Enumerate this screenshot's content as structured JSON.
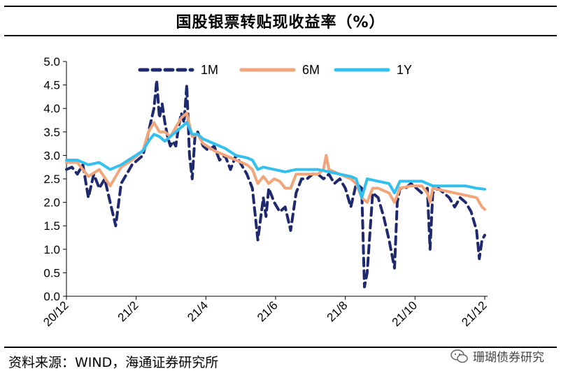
{
  "chart_data": {
    "type": "line",
    "title": "国股银票转贴现收益率（%）",
    "xlabel": "",
    "ylabel": "",
    "ylim": [
      0,
      5
    ],
    "yticks": [
      "0.0",
      "0.5",
      "1.0",
      "1.5",
      "2.0",
      "2.5",
      "3.0",
      "3.5",
      "4.0",
      "4.5",
      "5.0"
    ],
    "xticks": [
      "20/12",
      "21/2",
      "21/4",
      "21/6",
      "21/8",
      "21/10",
      "21/12"
    ],
    "legend_position": "top",
    "series": [
      {
        "name": "1M",
        "color": "#1f2a6e",
        "style": "dashed",
        "points": [
          [
            0,
            2.7
          ],
          [
            2,
            2.75
          ],
          [
            4,
            2.6
          ],
          [
            6,
            2.8
          ],
          [
            8,
            2.1
          ],
          [
            10,
            2.6
          ],
          [
            12,
            2.3
          ],
          [
            14,
            2.5
          ],
          [
            16,
            2.0
          ],
          [
            18,
            1.5
          ],
          [
            20,
            2.4
          ],
          [
            22,
            2.6
          ],
          [
            24,
            2.8
          ],
          [
            26,
            2.9
          ],
          [
            28,
            3.0
          ],
          [
            30,
            3.5
          ],
          [
            32,
            4.0
          ],
          [
            33,
            4.6
          ],
          [
            34,
            3.8
          ],
          [
            35,
            4.1
          ],
          [
            36,
            3.7
          ],
          [
            37,
            3.4
          ],
          [
            38,
            3.2
          ],
          [
            39,
            3.3
          ],
          [
            40,
            3.2
          ],
          [
            41,
            3.6
          ],
          [
            42,
            3.9
          ],
          [
            43,
            3.7
          ],
          [
            44,
            4.5
          ],
          [
            45,
            3.0
          ],
          [
            46,
            2.5
          ],
          [
            47,
            3.4
          ],
          [
            48,
            3.5
          ],
          [
            50,
            3.2
          ],
          [
            52,
            3.1
          ],
          [
            54,
            3.2
          ],
          [
            56,
            2.9
          ],
          [
            58,
            3.0
          ],
          [
            60,
            2.7
          ],
          [
            62,
            3.0
          ],
          [
            64,
            2.8
          ],
          [
            66,
            2.6
          ],
          [
            68,
            2.3
          ],
          [
            70,
            1.2
          ],
          [
            72,
            2.1
          ],
          [
            73,
            1.7
          ],
          [
            74,
            2.3
          ],
          [
            76,
            2.0
          ],
          [
            78,
            1.8
          ],
          [
            80,
            1.9
          ],
          [
            82,
            1.4
          ],
          [
            84,
            2.2
          ],
          [
            86,
            2.5
          ],
          [
            88,
            2.5
          ],
          [
            90,
            2.6
          ],
          [
            92,
            2.6
          ],
          [
            94,
            2.5
          ],
          [
            96,
            2.6
          ],
          [
            98,
            2.4
          ],
          [
            100,
            2.5
          ],
          [
            102,
            2.3
          ],
          [
            104,
            1.9
          ],
          [
            106,
            2.4
          ],
          [
            108,
            2.3
          ],
          [
            109,
            0.2
          ],
          [
            110,
            0.5
          ],
          [
            112,
            2.2
          ],
          [
            114,
            2.1
          ],
          [
            116,
            1.7
          ],
          [
            118,
            1.2
          ],
          [
            120,
            0.6
          ],
          [
            121,
            2.0
          ],
          [
            122,
            2.3
          ],
          [
            124,
            2.3
          ],
          [
            126,
            2.4
          ],
          [
            128,
            2.3
          ],
          [
            130,
            2.2
          ],
          [
            132,
            2.3
          ],
          [
            133,
            1.0
          ],
          [
            134,
            2.2
          ],
          [
            136,
            2.3
          ],
          [
            138,
            2.2
          ],
          [
            140,
            2.1
          ],
          [
            142,
            1.9
          ],
          [
            144,
            2.1
          ],
          [
            146,
            2.0
          ],
          [
            148,
            1.8
          ],
          [
            150,
            1.4
          ],
          [
            151,
            0.8
          ],
          [
            152,
            1.2
          ],
          [
            153,
            1.3
          ]
        ]
      },
      {
        "name": "6M",
        "color": "#f2a57a",
        "style": "solid",
        "points": [
          [
            0,
            2.85
          ],
          [
            4,
            2.85
          ],
          [
            8,
            2.55
          ],
          [
            12,
            2.7
          ],
          [
            16,
            2.35
          ],
          [
            20,
            2.75
          ],
          [
            24,
            2.9
          ],
          [
            28,
            3.1
          ],
          [
            30,
            3.5
          ],
          [
            32,
            3.7
          ],
          [
            34,
            3.5
          ],
          [
            36,
            3.5
          ],
          [
            38,
            3.4
          ],
          [
            40,
            3.6
          ],
          [
            42,
            3.8
          ],
          [
            44,
            3.9
          ],
          [
            46,
            3.4
          ],
          [
            48,
            3.45
          ],
          [
            50,
            3.25
          ],
          [
            54,
            3.1
          ],
          [
            58,
            3.0
          ],
          [
            62,
            2.9
          ],
          [
            66,
            2.8
          ],
          [
            68,
            2.7
          ],
          [
            70,
            2.4
          ],
          [
            72,
            2.55
          ],
          [
            74,
            2.4
          ],
          [
            76,
            2.5
          ],
          [
            78,
            2.45
          ],
          [
            80,
            2.3
          ],
          [
            82,
            2.3
          ],
          [
            84,
            2.6
          ],
          [
            88,
            2.6
          ],
          [
            92,
            2.6
          ],
          [
            94,
            2.7
          ],
          [
            95,
            3.0
          ],
          [
            96,
            2.7
          ],
          [
            100,
            2.6
          ],
          [
            104,
            2.5
          ],
          [
            106,
            2.4
          ],
          [
            108,
            2.1
          ],
          [
            110,
            2.0
          ],
          [
            112,
            2.3
          ],
          [
            114,
            2.3
          ],
          [
            118,
            2.2
          ],
          [
            120,
            2.0
          ],
          [
            122,
            2.3
          ],
          [
            126,
            2.35
          ],
          [
            130,
            2.35
          ],
          [
            132,
            2.2
          ],
          [
            133,
            2.0
          ],
          [
            134,
            2.3
          ],
          [
            138,
            2.25
          ],
          [
            142,
            2.2
          ],
          [
            146,
            2.15
          ],
          [
            150,
            2.1
          ],
          [
            152,
            1.9
          ],
          [
            153,
            1.85
          ]
        ]
      },
      {
        "name": "1Y",
        "color": "#33c0ee",
        "style": "solid",
        "points": [
          [
            0,
            2.9
          ],
          [
            4,
            2.9
          ],
          [
            8,
            2.8
          ],
          [
            12,
            2.85
          ],
          [
            16,
            2.7
          ],
          [
            20,
            2.8
          ],
          [
            24,
            2.95
          ],
          [
            28,
            3.1
          ],
          [
            30,
            3.3
          ],
          [
            32,
            3.45
          ],
          [
            34,
            3.4
          ],
          [
            36,
            3.3
          ],
          [
            38,
            3.4
          ],
          [
            40,
            3.5
          ],
          [
            42,
            3.6
          ],
          [
            44,
            3.7
          ],
          [
            46,
            3.45
          ],
          [
            48,
            3.45
          ],
          [
            50,
            3.35
          ],
          [
            54,
            3.25
          ],
          [
            58,
            3.15
          ],
          [
            62,
            3.0
          ],
          [
            66,
            2.95
          ],
          [
            68,
            2.9
          ],
          [
            70,
            2.7
          ],
          [
            72,
            2.75
          ],
          [
            76,
            2.7
          ],
          [
            80,
            2.65
          ],
          [
            84,
            2.7
          ],
          [
            88,
            2.7
          ],
          [
            92,
            2.7
          ],
          [
            96,
            2.65
          ],
          [
            100,
            2.6
          ],
          [
            104,
            2.55
          ],
          [
            106,
            2.5
          ],
          [
            108,
            2.1
          ],
          [
            110,
            2.5
          ],
          [
            114,
            2.45
          ],
          [
            118,
            2.4
          ],
          [
            120,
            2.2
          ],
          [
            122,
            2.45
          ],
          [
            126,
            2.45
          ],
          [
            130,
            2.45
          ],
          [
            134,
            2.35
          ],
          [
            138,
            2.35
          ],
          [
            142,
            2.35
          ],
          [
            146,
            2.35
          ],
          [
            150,
            2.3
          ],
          [
            153,
            2.28
          ]
        ]
      }
    ]
  },
  "source": "资料来源：WIND，海通证券研究所",
  "watermark": "珊瑚债券研究"
}
